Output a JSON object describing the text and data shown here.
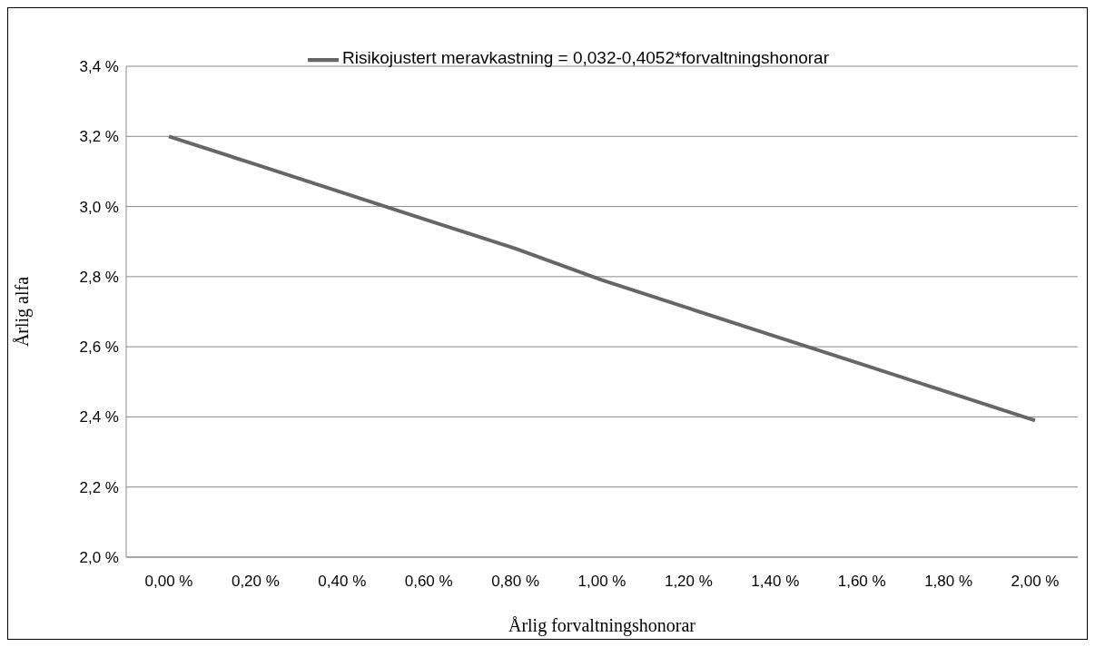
{
  "chart_data": {
    "type": "line",
    "xlabel": "Årlig forvaltningshonorar",
    "ylabel": "Årlig alfa",
    "categories": [
      "0,00 %",
      "0,20 %",
      "0,40 %",
      "0,60 %",
      "0,80 %",
      "1,00 %",
      "1,20 %",
      "1,40 %",
      "1,60 %",
      "1,80 %",
      "2,00 %"
    ],
    "series": [
      {
        "name": "Risikojustert meravkastning = 0,032-0,4052*forvaltningshonorar",
        "color": "#666666",
        "values": [
          3.2,
          3.12,
          3.04,
          2.96,
          2.88,
          2.79,
          2.71,
          2.63,
          2.55,
          2.47,
          2.39
        ]
      }
    ],
    "ylim": [
      2.0,
      3.4
    ],
    "yticks": [
      {
        "value": 2.0,
        "label": "2,0 %"
      },
      {
        "value": 2.2,
        "label": "2,2 %"
      },
      {
        "value": 2.4,
        "label": "2,4 %"
      },
      {
        "value": 2.6,
        "label": "2,6 %"
      },
      {
        "value": 2.8,
        "label": "2,8 %"
      },
      {
        "value": 3.0,
        "label": "3,0 %"
      },
      {
        "value": 3.2,
        "label": "3,2 %"
      },
      {
        "value": 3.4,
        "label": "3,4 %"
      }
    ],
    "grid": "y",
    "legend": "top",
    "marker": "none",
    "line_style": "solid"
  }
}
